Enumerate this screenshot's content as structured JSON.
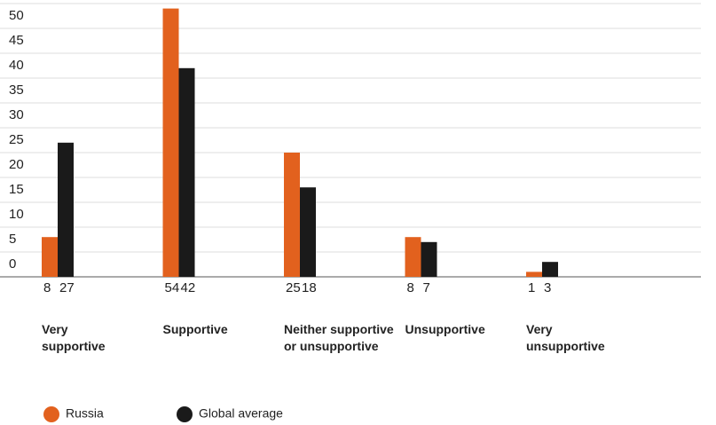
{
  "chart_data": {
    "type": "bar",
    "categories": [
      "Very supportive",
      "Supportive",
      "Neither supportive or unsupportive",
      "Unsupportive",
      "Very unsupportive"
    ],
    "series": [
      {
        "name": "Russia",
        "color": "#e2611e",
        "values": [
          8,
          54,
          25,
          8,
          1
        ]
      },
      {
        "name": "Global average",
        "color": "#1a1a1a",
        "values": [
          27,
          42,
          18,
          7,
          3
        ]
      }
    ],
    "ylim": [
      0,
      55
    ],
    "yticks": [
      0,
      5,
      10,
      15,
      20,
      25,
      30,
      35,
      40,
      45,
      50
    ],
    "grid": true
  }
}
